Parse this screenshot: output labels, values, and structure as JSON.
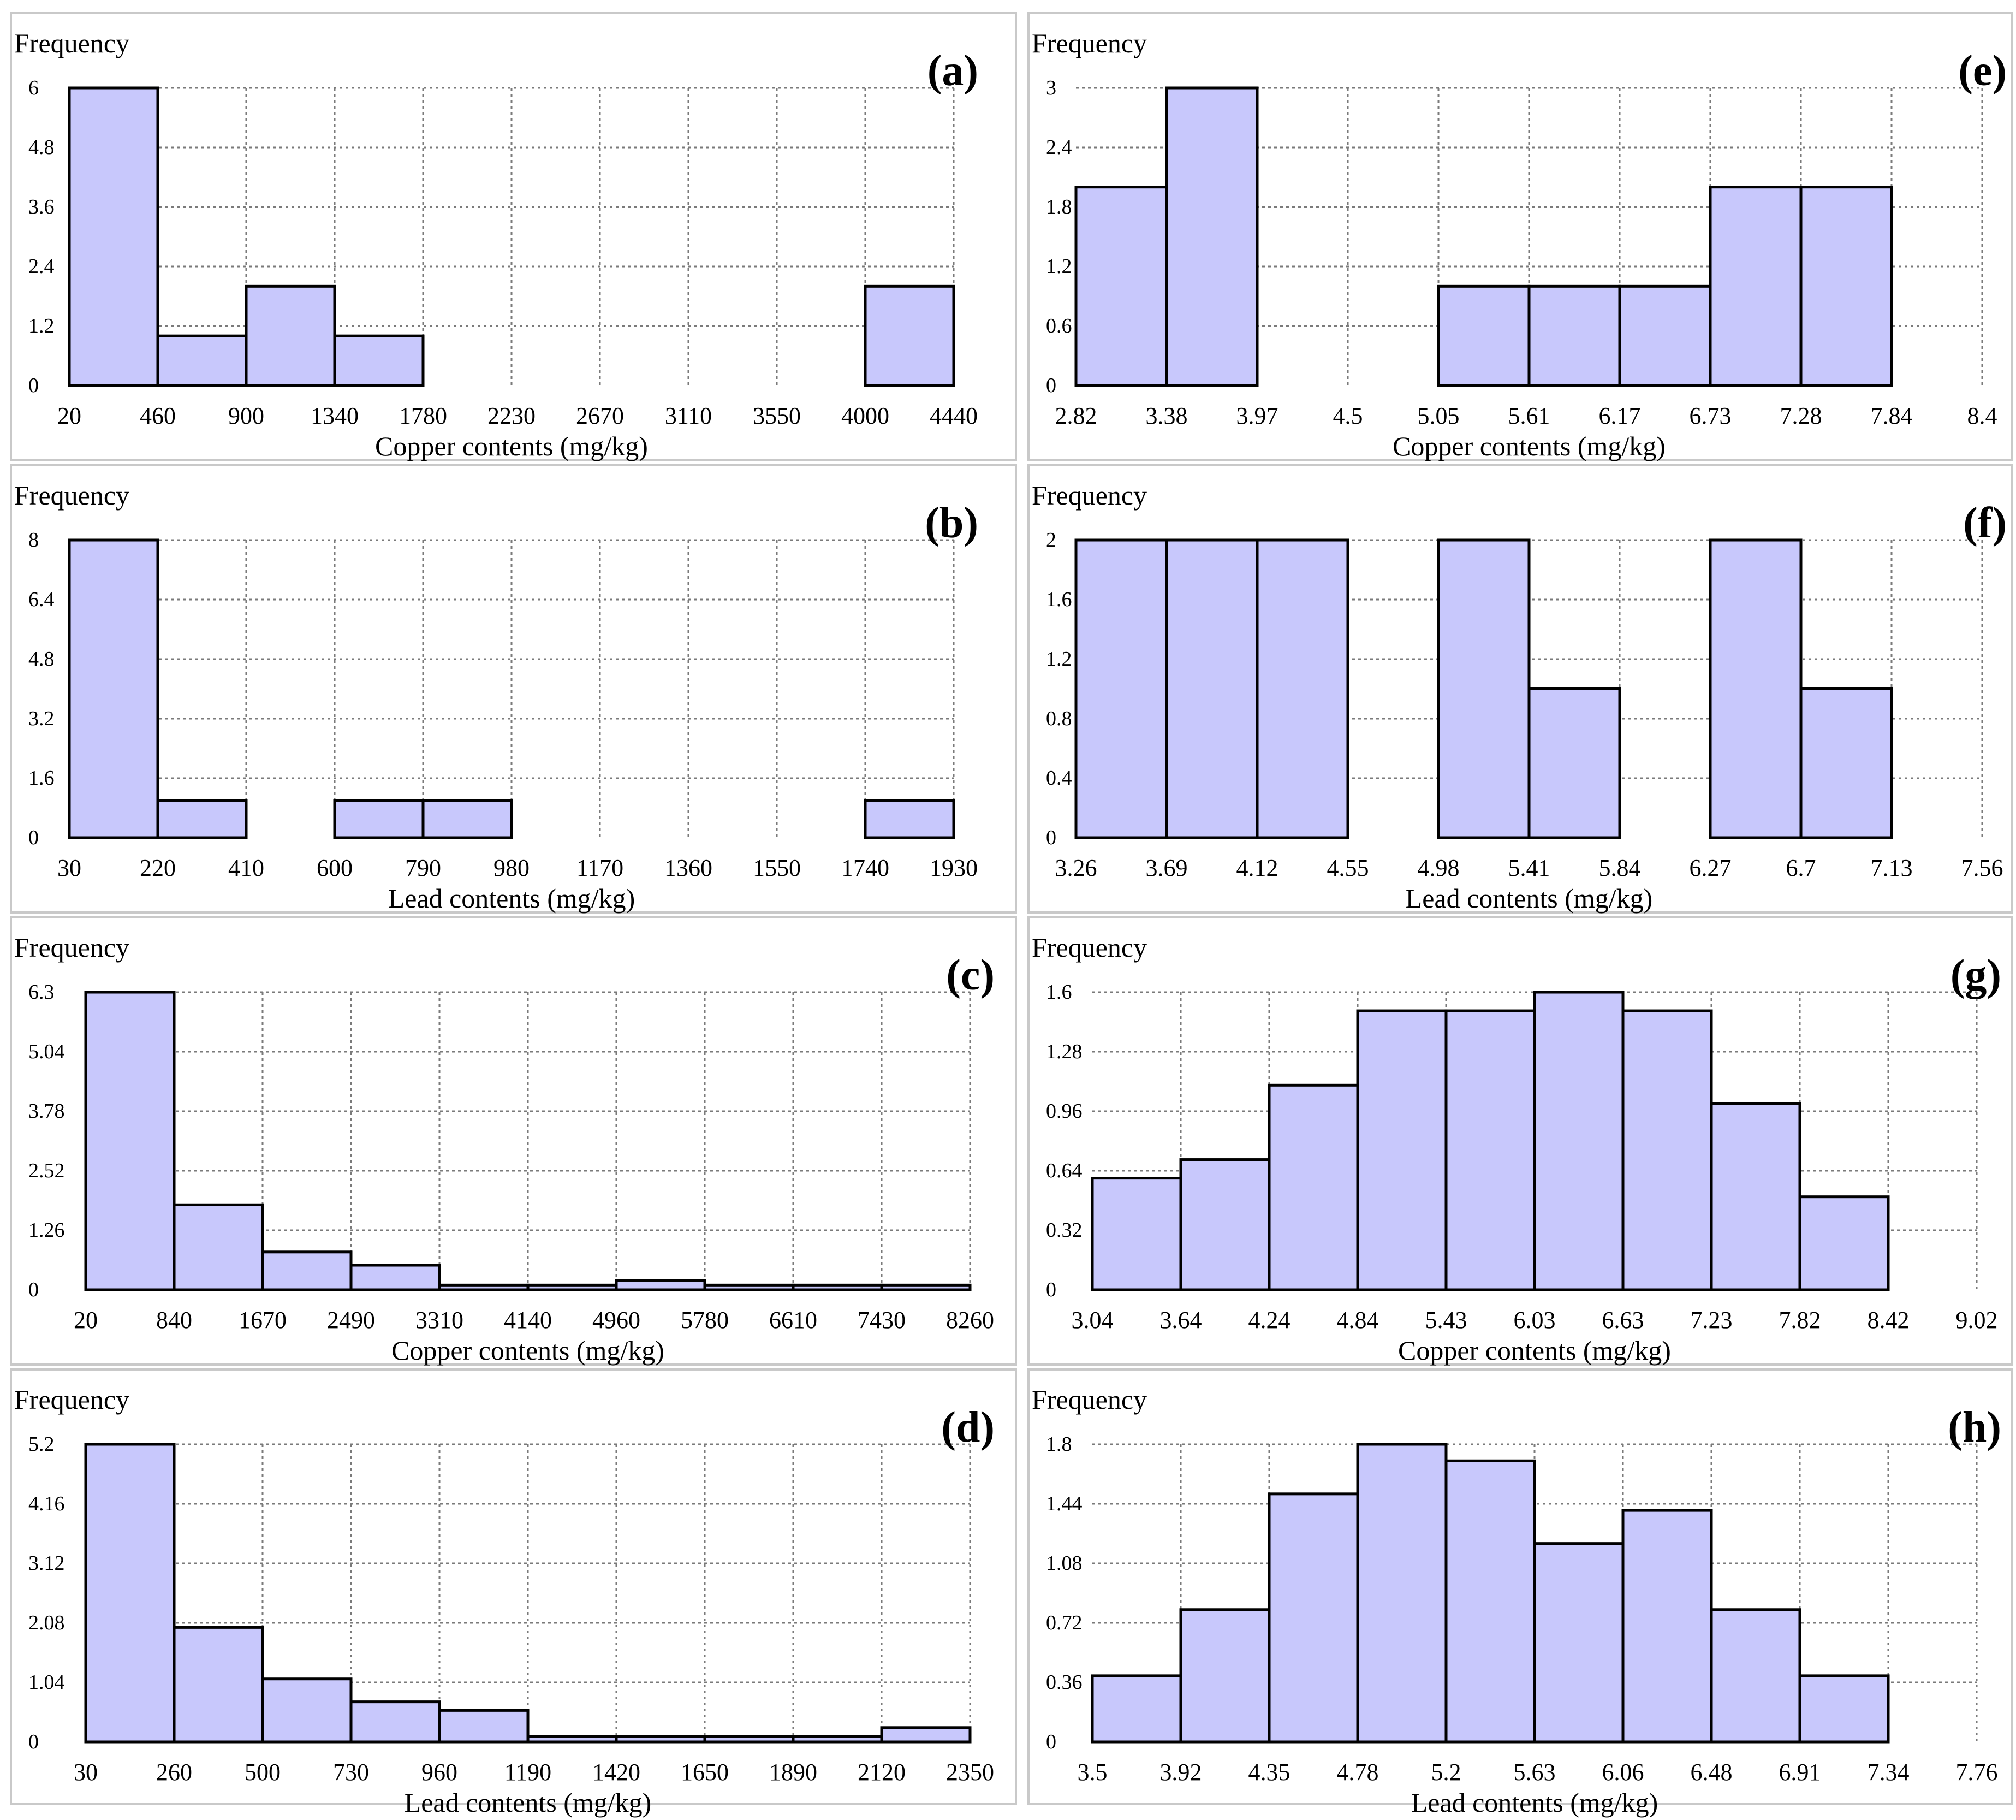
{
  "chart_data": [
    {
      "id": "a",
      "type": "bar",
      "panel_label": "(a)",
      "ylabel": "Frequency",
      "xlabel": "Copper contents (mg/kg)",
      "x_ticks": [
        "20",
        "460",
        "900",
        "1340",
        "1780",
        "2230",
        "2670",
        "3110",
        "3550",
        "4000",
        "4440"
      ],
      "y_ticks": [
        "0",
        "1.2",
        "2.4",
        "3.6",
        "4.8",
        "6"
      ],
      "ylim": [
        0,
        6
      ],
      "values": [
        6,
        1,
        2,
        1,
        0,
        0,
        0,
        0,
        0,
        2
      ]
    },
    {
      "id": "b",
      "type": "bar",
      "panel_label": "(b)",
      "ylabel": "Frequency",
      "xlabel": "Lead contents (mg/kg)",
      "x_ticks": [
        "30",
        "220",
        "410",
        "600",
        "790",
        "980",
        "1170",
        "1360",
        "1550",
        "1740",
        "1930"
      ],
      "y_ticks": [
        "0",
        "1.6",
        "3.2",
        "4.8",
        "6.4",
        "8"
      ],
      "ylim": [
        0,
        8
      ],
      "values": [
        8,
        1,
        0,
        1,
        1,
        0,
        0,
        0,
        0,
        1
      ]
    },
    {
      "id": "c",
      "type": "bar",
      "panel_label": "(c)",
      "ylabel": "Frequency",
      "xlabel": "Copper contents (mg/kg)",
      "x_ticks": [
        "20",
        "840",
        "1670",
        "2490",
        "3310",
        "4140",
        "4960",
        "5780",
        "6610",
        "7430",
        "8260"
      ],
      "y_ticks": [
        "0",
        "1.26",
        "2.52",
        "3.78",
        "5.04",
        "6.3"
      ],
      "ylim": [
        0,
        6.3
      ],
      "values": [
        6.3,
        1.8,
        0.8,
        0.52,
        0.1,
        0.1,
        0.2,
        0.1,
        0.1,
        0.1
      ]
    },
    {
      "id": "d",
      "type": "bar",
      "panel_label": "(d)",
      "ylabel": "Frequency",
      "xlabel": "Lead contents (mg/kg)",
      "x_ticks": [
        "30",
        "260",
        "500",
        "730",
        "960",
        "1190",
        "1420",
        "1650",
        "1890",
        "2120",
        "2350"
      ],
      "y_ticks": [
        "0",
        "1.04",
        "2.08",
        "3.12",
        "4.16",
        "5.2"
      ],
      "ylim": [
        0,
        5.2
      ],
      "values": [
        5.2,
        2.0,
        1.1,
        0.7,
        0.55,
        0.1,
        0.1,
        0.1,
        0.1,
        0.25
      ]
    },
    {
      "id": "e",
      "type": "bar",
      "panel_label": "(e)",
      "ylabel": "Frequency",
      "xlabel": "Copper contents (mg/kg)",
      "x_ticks": [
        "2.82",
        "3.38",
        "3.97",
        "4.5",
        "5.05",
        "5.61",
        "6.17",
        "6.73",
        "7.28",
        "7.84",
        "8.4"
      ],
      "y_ticks": [
        "0",
        "0.6",
        "1.2",
        "1.8",
        "2.4",
        "3"
      ],
      "ylim": [
        0,
        3
      ],
      "values": [
        2,
        3,
        0,
        0,
        1,
        1,
        1,
        2,
        2
      ]
    },
    {
      "id": "f",
      "type": "bar",
      "panel_label": "(f)",
      "ylabel": "Frequency",
      "xlabel": "Lead contents  (mg/kg)",
      "x_ticks": [
        "3.26",
        "3.69",
        "4.12",
        "4.55",
        "4.98",
        "5.41",
        "5.84",
        "6.27",
        "6.7",
        "7.13",
        "7.56"
      ],
      "y_ticks": [
        "0",
        "0.4",
        "0.8",
        "1.2",
        "1.6",
        "2"
      ],
      "ylim": [
        0,
        2
      ],
      "values": [
        2,
        2,
        2,
        0,
        2,
        1,
        0,
        2,
        1
      ]
    },
    {
      "id": "g",
      "type": "bar",
      "panel_label": "(g)",
      "ylabel": "Frequency",
      "xlabel": "Copper contents (mg/kg)",
      "x_ticks": [
        "3.04",
        "3.64",
        "4.24",
        "4.84",
        "5.43",
        "6.03",
        "6.63",
        "7.23",
        "7.82",
        "8.42",
        "9.02"
      ],
      "y_ticks": [
        "0",
        "0.32",
        "0.64",
        "0.96",
        "1.28",
        "1.6"
      ],
      "ylim": [
        0,
        1.6
      ],
      "values": [
        0.6,
        0.7,
        1.1,
        1.5,
        1.5,
        1.6,
        1.5,
        1.0,
        0.5
      ]
    },
    {
      "id": "h",
      "type": "bar",
      "panel_label": "(h)",
      "ylabel": "Frequency",
      "xlabel": "Lead contents (mg/kg)",
      "x_ticks": [
        "3.5",
        "3.92",
        "4.35",
        "4.78",
        "5.2",
        "5.63",
        "6.06",
        "6.48",
        "6.91",
        "7.34",
        "7.76"
      ],
      "y_ticks": [
        "0",
        "0.36",
        "0.72",
        "1.08",
        "1.44",
        "1.8"
      ],
      "ylim": [
        0,
        1.8
      ],
      "values": [
        0.4,
        0.8,
        1.5,
        1.8,
        1.7,
        1.2,
        1.4,
        0.8,
        0.4
      ]
    }
  ]
}
